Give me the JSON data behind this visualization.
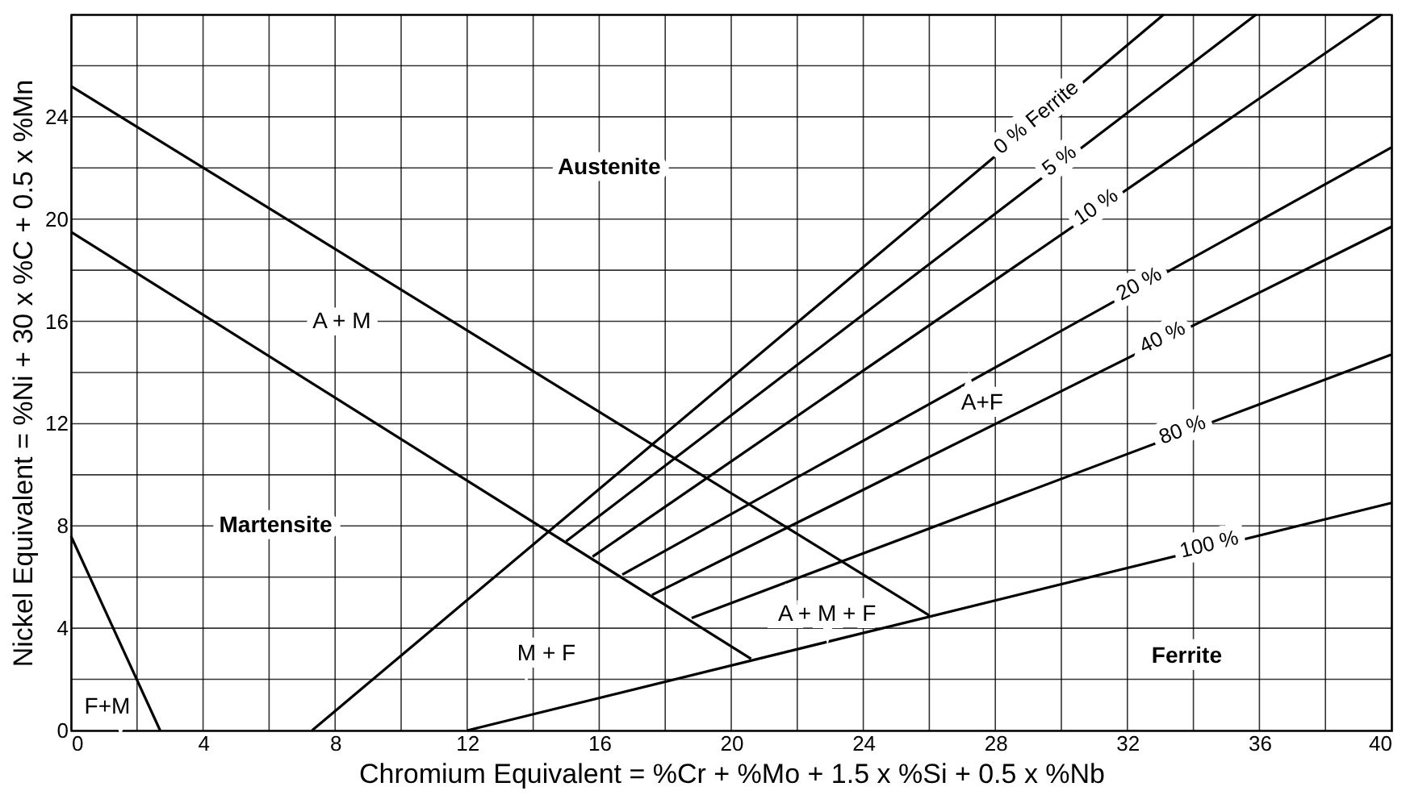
{
  "chart_data": {
    "type": "line",
    "xlabel": "Chromium Equivalent = %Cr + %Mo + 1.5 x %Si + 0.5 x %Nb",
    "ylabel": "Nickel Equivalent = %Ni + 30 x %C + 0.5 x %Mn",
    "xlim": [
      0,
      40
    ],
    "ylim": [
      0,
      28
    ],
    "xticks": [
      0,
      {
        "value": 2,
        "label": null
      },
      4,
      {
        "value": 6,
        "label": null
      },
      8,
      {
        "value": 10,
        "label": null
      },
      12,
      {
        "value": 14,
        "label": null
      },
      16,
      {
        "value": 18,
        "label": null
      },
      20,
      {
        "value": 22,
        "label": null
      },
      24,
      {
        "value": 26,
        "label": null
      },
      28,
      {
        "value": 30,
        "label": null
      },
      32,
      {
        "value": 34,
        "label": null
      },
      36,
      {
        "value": 38,
        "label": null
      },
      40
    ],
    "yticks": [
      0,
      {
        "value": 2,
        "label": null
      },
      4,
      {
        "value": 6,
        "label": null
      },
      8,
      {
        "value": 10,
        "label": null
      },
      12,
      {
        "value": 14,
        "label": null
      },
      16,
      {
        "value": 18,
        "label": null
      },
      20,
      {
        "value": 22,
        "label": null
      },
      24,
      {
        "value": 26,
        "label": null
      },
      {
        "value": 28,
        "label": null
      }
    ],
    "grid": true,
    "marker": "none",
    "line_style": "solid",
    "series": [
      {
        "color": "#000000",
        "x": [
          0,
          26
        ],
        "values": [
          25.2,
          4.5
        ]
      },
      {
        "color": "#000000",
        "x": [
          0,
          20.6
        ],
        "values": [
          19.5,
          2.8
        ]
      },
      {
        "color": "#000000",
        "x": [
          0,
          2.7
        ],
        "values": [
          7.6,
          0
        ]
      },
      {
        "name": "0 % Ferrite",
        "color": "#000000",
        "x": [
          7.3,
          33.1
        ],
        "values": [
          0,
          28
        ]
      },
      {
        "name": "5 %",
        "color": "#000000",
        "x": [
          15.0,
          35.9
        ],
        "values": [
          7.4,
          28
        ]
      },
      {
        "name": "10 %",
        "color": "#000000",
        "x": [
          15.8,
          39.7
        ],
        "values": [
          6.8,
          28
        ]
      },
      {
        "name": "20 %",
        "color": "#000000",
        "x": [
          16.7,
          40
        ],
        "values": [
          6.1,
          22.8
        ]
      },
      {
        "name": "40 %",
        "color": "#000000",
        "x": [
          17.6,
          40
        ],
        "values": [
          5.3,
          19.7
        ]
      },
      {
        "name": "80 %",
        "color": "#000000",
        "x": [
          18.8,
          40
        ],
        "values": [
          4.4,
          14.7
        ]
      },
      {
        "name": "100 %",
        "color": "#000000",
        "x": [
          12,
          40
        ],
        "values": [
          0,
          8.9
        ]
      }
    ],
    "annotations": [
      "Austenite",
      "A + M",
      "Martensite",
      "F+M",
      "M + F",
      "A+F",
      "A + M + F",
      "Ferrite"
    ]
  }
}
